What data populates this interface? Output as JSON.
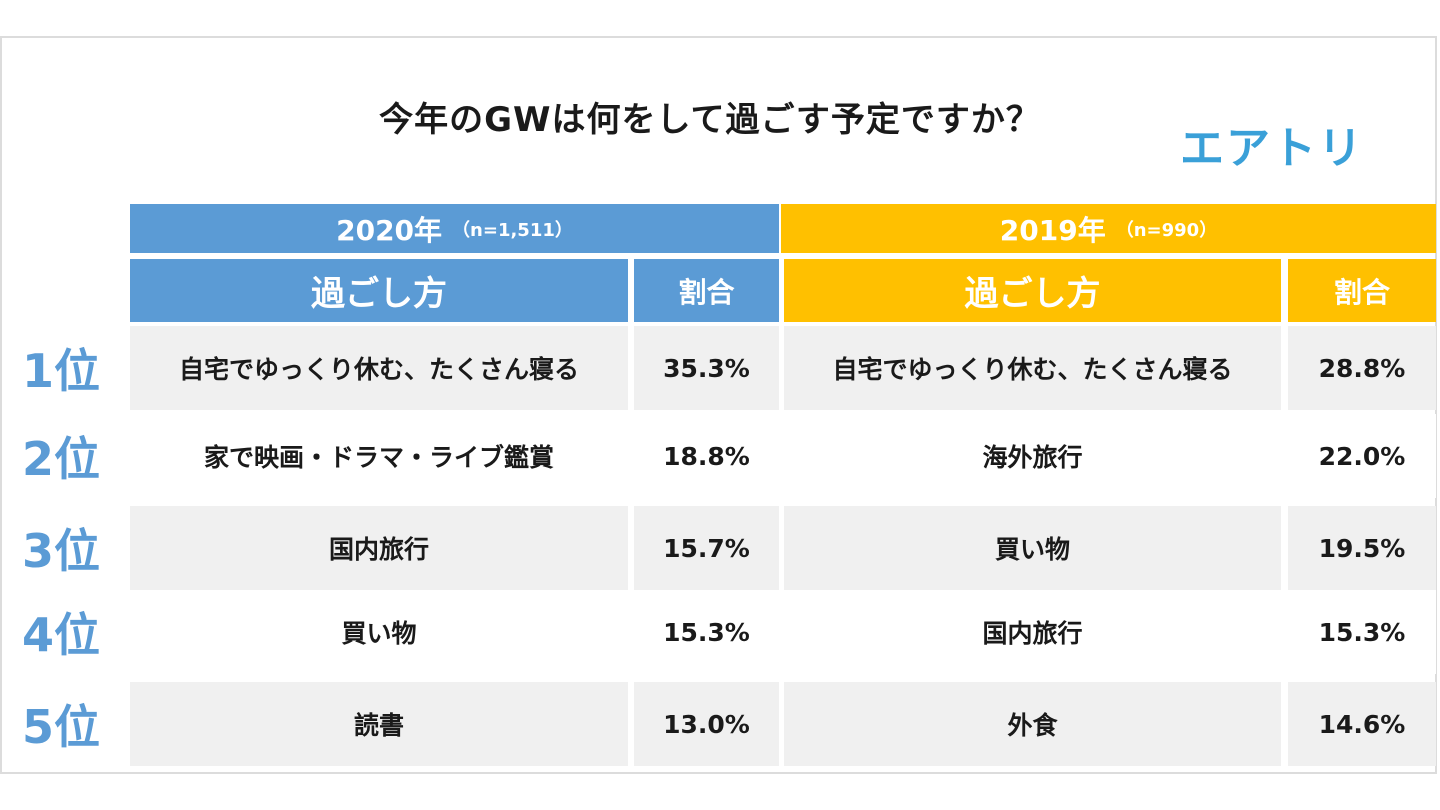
{
  "title": "今年のGWは何をして過ごす予定ですか？",
  "logo": "エアトリ",
  "colors": {
    "blue": "#5b9bd5",
    "gold": "#ffc000",
    "logo": "#3aa0d8",
    "rank": "#5b9bd5"
  },
  "chart_data": {
    "type": "table",
    "title": "今年のGWは何をして過ごす予定ですか？",
    "groups": [
      {
        "year": "2020年",
        "n": "（n=1,511）",
        "method_header": "過ごし方",
        "ratio_header": "割合"
      },
      {
        "year": "2019年",
        "n": "（n=990）",
        "method_header": "過ごし方",
        "ratio_header": "割合"
      }
    ],
    "rows": [
      {
        "rank": "1位",
        "m2020": "自宅でゆっくり休む、たくさん寝る",
        "r2020": "35.3%",
        "m2019": "自宅でゆっくり休む、たくさん寝る",
        "r2019": "28.8%"
      },
      {
        "rank": "2位",
        "m2020": "家で映画・ドラマ・ライブ鑑賞",
        "r2020": "18.8%",
        "m2019": "海外旅行",
        "r2019": "22.0%"
      },
      {
        "rank": "3位",
        "m2020": "国内旅行",
        "r2020": "15.7%",
        "m2019": "買い物",
        "r2019": "19.5%"
      },
      {
        "rank": "4位",
        "m2020": "買い物",
        "r2020": "15.3%",
        "m2019": "国内旅行",
        "r2019": "15.3%"
      },
      {
        "rank": "5位",
        "m2020": "読書",
        "r2020": "13.0%",
        "m2019": "外食",
        "r2019": "14.6%"
      }
    ],
    "values_2020": [
      35.3,
      18.8,
      15.7,
      15.3,
      13.0
    ],
    "values_2019": [
      28.8,
      22.0,
      19.5,
      15.3,
      14.6
    ]
  }
}
